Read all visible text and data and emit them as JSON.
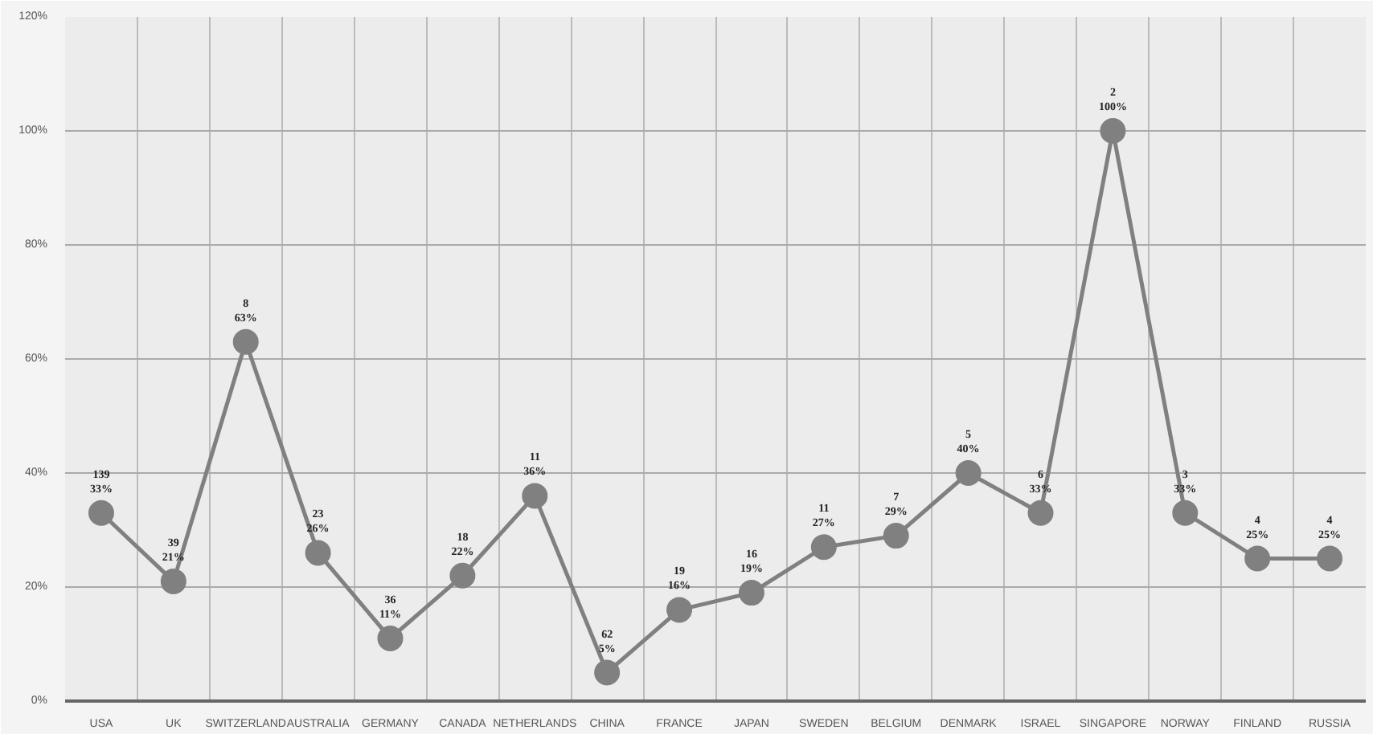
{
  "chart_data": {
    "type": "line",
    "categories": [
      "USA",
      "UK",
      "SWITZERLAND",
      "AUSTRALIA",
      "GERMANY",
      "CANADA",
      "NETHERLANDS",
      "CHINA",
      "FRANCE",
      "JAPAN",
      "SWEDEN",
      "BELGIUM",
      "DENMARK",
      "ISRAEL",
      "SINGAPORE",
      "NORWAY",
      "FINLAND",
      "RUSSIA"
    ],
    "series": [
      {
        "color": "#808080",
        "values": [
          33,
          21,
          63,
          26,
          11,
          22,
          36,
          5,
          16,
          19,
          27,
          29,
          40,
          33,
          100,
          33,
          25,
          25
        ],
        "value_labels": [
          "33%",
          "21%",
          "63%",
          "26%",
          "11%",
          "22%",
          "36%",
          "5%",
          "16%",
          "19%",
          "27%",
          "29%",
          "40%",
          "33%",
          "100%",
          "33%",
          "25%",
          "25%"
        ]
      }
    ],
    "annotations": [
      {
        "text": "139",
        "x": "USA",
        "y": 33
      },
      {
        "text": "39",
        "x": "UK",
        "y": 21
      },
      {
        "text": "8",
        "x": "SWITZERLAND",
        "y": 63
      },
      {
        "text": "23",
        "x": "AUSTRALIA",
        "y": 26
      },
      {
        "text": "36",
        "x": "GERMANY",
        "y": 11
      },
      {
        "text": "18",
        "x": "CANADA",
        "y": 22
      },
      {
        "text": "11",
        "x": "NETHERLANDS",
        "y": 36
      },
      {
        "text": "62",
        "x": "CHINA",
        "y": 5
      },
      {
        "text": "19",
        "x": "FRANCE",
        "y": 16
      },
      {
        "text": "16",
        "x": "JAPAN",
        "y": 19
      },
      {
        "text": "11",
        "x": "SWEDEN",
        "y": 27
      },
      {
        "text": "7",
        "x": "BELGIUM",
        "y": 29
      },
      {
        "text": "5",
        "x": "DENMARK",
        "y": 40
      },
      {
        "text": "6",
        "x": "ISRAEL",
        "y": 33
      },
      {
        "text": "2",
        "x": "SINGAPORE",
        "y": 100
      },
      {
        "text": "3",
        "x": "NORWAY",
        "y": 33
      },
      {
        "text": "4",
        "x": "FINLAND",
        "y": 25
      },
      {
        "text": "4",
        "x": "RUSSIA",
        "y": 25
      }
    ],
    "ylim": [
      0,
      120
    ],
    "yticks": [
      {
        "value": 0,
        "label": "0%"
      },
      {
        "value": 20,
        "label": "20%"
      },
      {
        "value": 40,
        "label": "40%"
      },
      {
        "value": 60,
        "label": "60%"
      },
      {
        "value": 80,
        "label": "80%"
      },
      {
        "value": 100,
        "label": "100%"
      },
      {
        "value": 120,
        "label": "120%"
      }
    ],
    "grid": true,
    "marker": "circle",
    "line_style": "solid"
  }
}
